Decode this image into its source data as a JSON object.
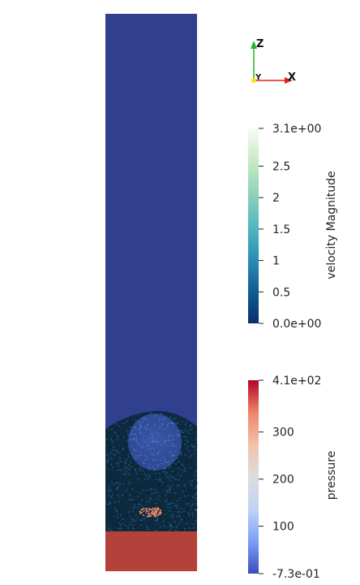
{
  "colors": {
    "background": "#ffffff",
    "upper_fluid": "#313f8f",
    "bottom_layer": "#b5423a",
    "particle_dark": "#0e2a3f",
    "particle_blue": "#1d5b8a",
    "hot_particles": "#e8876a"
  },
  "orientation_axes": {
    "x_label": "X",
    "y_label": "Y",
    "z_label": "Z",
    "x_color": "#e0201a",
    "y_color": "#f2e21a",
    "z_color": "#22b522"
  },
  "velocity_bar": {
    "title": "velocity Magnitude",
    "ticks": [
      {
        "label": "3.1e+00",
        "value": 3.1
      },
      {
        "label": "2.5",
        "value": 2.5
      },
      {
        "label": "2",
        "value": 2.0
      },
      {
        "label": "1.5",
        "value": 1.5
      },
      {
        "label": "1",
        "value": 1.0
      },
      {
        "label": "0.5",
        "value": 0.5
      },
      {
        "label": "0.0e+00",
        "value": 0.0
      }
    ],
    "range": [
      0.0,
      3.1
    ],
    "colormap": [
      "#08306b",
      "#0f5d94",
      "#2c8fb7",
      "#54b8c1",
      "#8fd3b8",
      "#c9eac3",
      "#f7fcf5"
    ]
  },
  "pressure_bar": {
    "title": "pressure",
    "ticks": [
      {
        "label": "4.1e+02",
        "value": 410
      },
      {
        "label": "300",
        "value": 300
      },
      {
        "label": "200",
        "value": 200
      },
      {
        "label": "100",
        "value": 100
      },
      {
        "label": "-7.3e-01",
        "value": -0.73
      }
    ],
    "range": [
      -0.73,
      410
    ],
    "colormap": [
      "#3b4cc0",
      "#7b9ff9",
      "#c0d4f5",
      "#dddddd",
      "#f2c3ab",
      "#ee8468",
      "#b40426"
    ]
  }
}
